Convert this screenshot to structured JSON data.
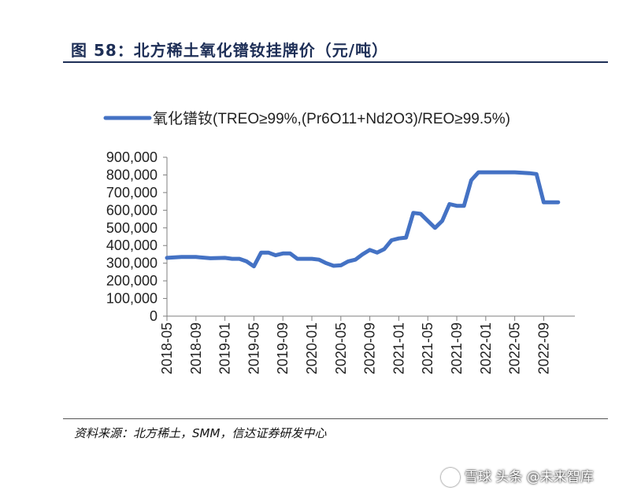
{
  "title": "图 58：北方稀土氧化镨钕挂牌价（元/吨）",
  "source": "资料来源：北方稀土，SMM，信达证券研发中心",
  "watermark": "雪球 头条 @未来智库",
  "chart_data": {
    "type": "line",
    "title": "",
    "xlabel": "",
    "ylabel": "",
    "ylim": [
      0,
      900000
    ],
    "yticks": [
      "900,000",
      "800,000",
      "700,000",
      "600,000",
      "500,000",
      "400,000",
      "300,000",
      "200,000",
      "100,000",
      "0"
    ],
    "xticks": [
      "2018-05",
      "2018-09",
      "2019-01",
      "2019-05",
      "2019-09",
      "2020-01",
      "2020-05",
      "2020-09",
      "2021-01",
      "2021-05",
      "2021-09",
      "2022-01",
      "2022-05",
      "2022-09"
    ],
    "legend": "top-left",
    "grid": false,
    "color": "#4472c4",
    "series": [
      {
        "name": "氧化镨钕(TREO≥99%,(Pr6O11+Nd2O3)/REO≥99.5%)",
        "points": [
          [
            "2018-05",
            330000
          ],
          [
            "2018-07",
            335000
          ],
          [
            "2018-09",
            335000
          ],
          [
            "2018-11",
            328000
          ],
          [
            "2019-01",
            330000
          ],
          [
            "2019-02",
            325000
          ],
          [
            "2019-03",
            325000
          ],
          [
            "2019-04",
            310000
          ],
          [
            "2019-05",
            282000
          ],
          [
            "2019-06",
            360000
          ],
          [
            "2019-07",
            360000
          ],
          [
            "2019-08",
            345000
          ],
          [
            "2019-09",
            355000
          ],
          [
            "2019-10",
            355000
          ],
          [
            "2019-11",
            325000
          ],
          [
            "2020-01",
            325000
          ],
          [
            "2020-02",
            320000
          ],
          [
            "2020-03",
            300000
          ],
          [
            "2020-04",
            285000
          ],
          [
            "2020-05",
            288000
          ],
          [
            "2020-06",
            310000
          ],
          [
            "2020-07",
            320000
          ],
          [
            "2020-08",
            350000
          ],
          [
            "2020-09",
            375000
          ],
          [
            "2020-10",
            360000
          ],
          [
            "2020-11",
            380000
          ],
          [
            "2020-12",
            430000
          ],
          [
            "2021-01",
            440000
          ],
          [
            "2021-02",
            445000
          ],
          [
            "2021-03",
            585000
          ],
          [
            "2021-04",
            580000
          ],
          [
            "2021-05",
            540000
          ],
          [
            "2021-06",
            500000
          ],
          [
            "2021-07",
            540000
          ],
          [
            "2021-08",
            635000
          ],
          [
            "2021-09",
            625000
          ],
          [
            "2021-10",
            625000
          ],
          [
            "2021-11",
            770000
          ],
          [
            "2021-12",
            815000
          ],
          [
            "2022-01",
            815000
          ],
          [
            "2022-03",
            815000
          ],
          [
            "2022-05",
            815000
          ],
          [
            "2022-07",
            810000
          ],
          [
            "2022-08",
            805000
          ],
          [
            "2022-09",
            645000
          ],
          [
            "2022-10",
            645000
          ],
          [
            "2022-11",
            645000
          ]
        ]
      }
    ]
  }
}
